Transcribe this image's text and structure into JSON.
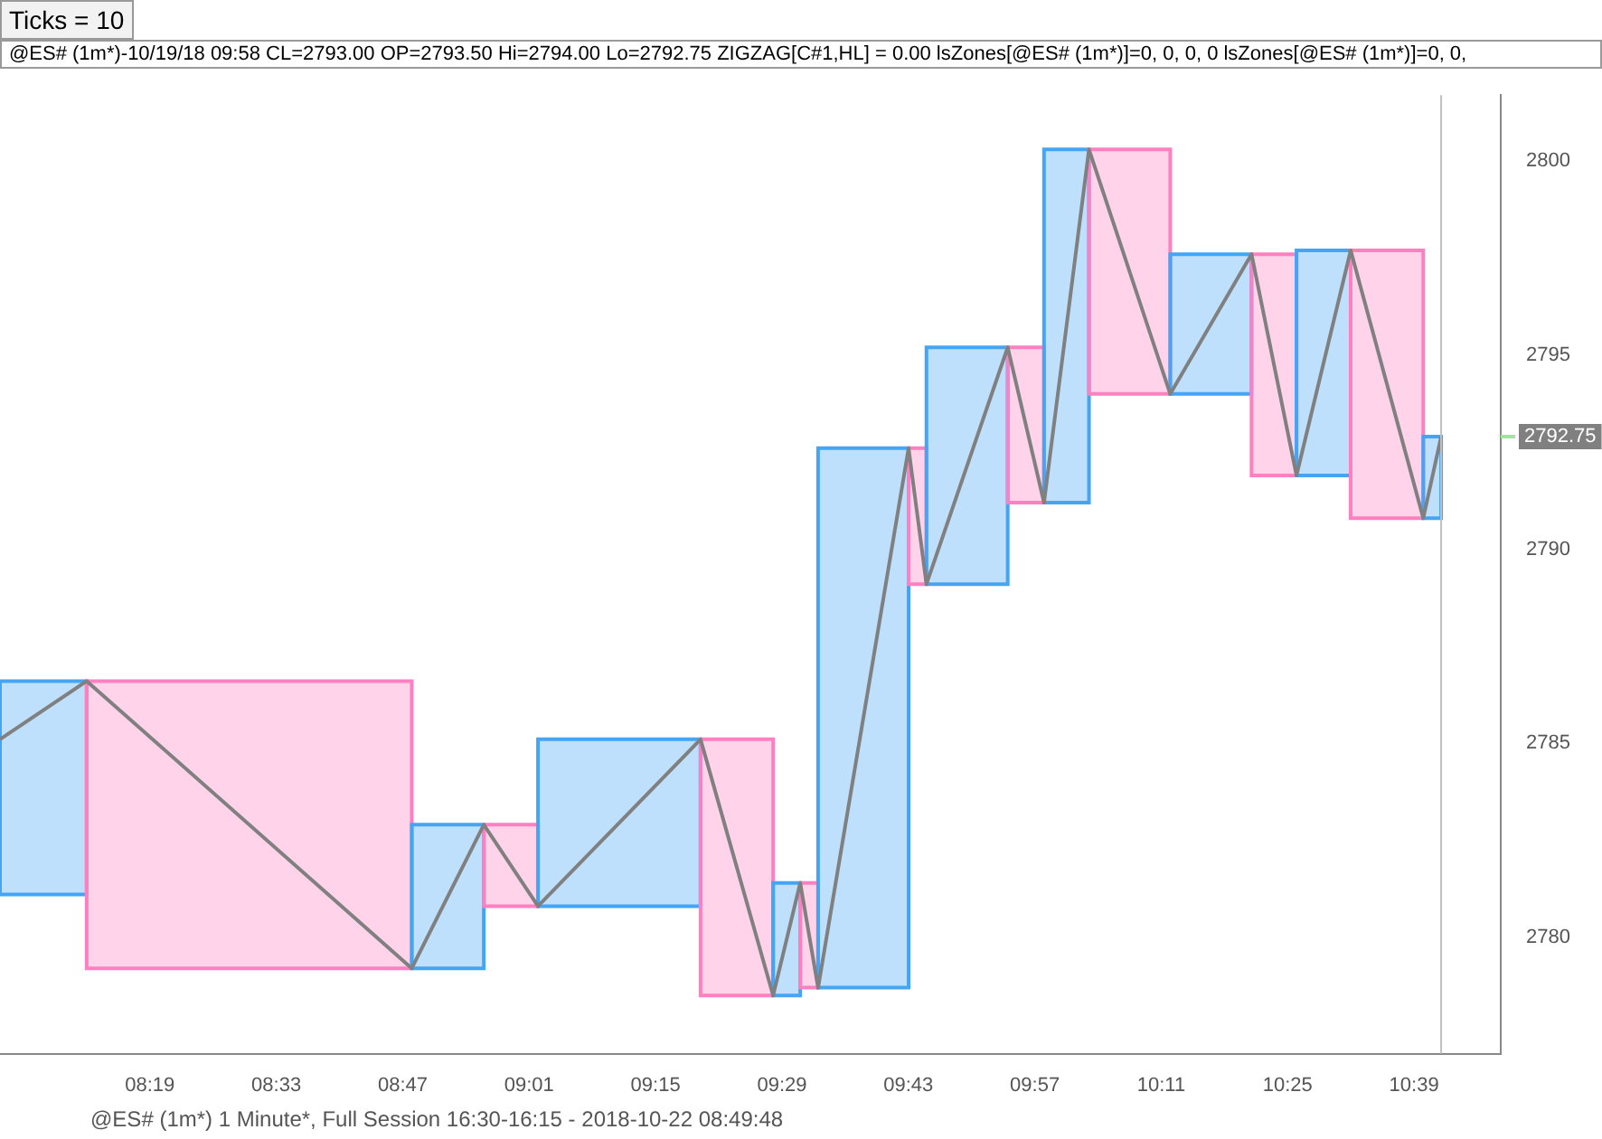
{
  "chart_data": {
    "type": "line",
    "title": "Ticks = 10",
    "subtitle": "@ES# (1m*)-10/19/18 09:58 CL=2793.00 OP=2793.50 Hi=2794.00 Lo=2792.75   ZIGZAG[C#1,HL] = 0.00   lsZones[@ES# (1m*)]=0, 0, 0, 0   lsZones[@ES# (1m*)]=0, 0,",
    "annotations": [
      "@ES# (1m*) 1 Minute*, Full Session 16:30-16:15 - 2018-10-22 08:49:48",
      "2792.75"
    ],
    "xlim": [
      8.04,
      10.81
    ],
    "xticks": [
      {
        "value": 8.3167,
        "label": "08:19"
      },
      {
        "value": 8.55,
        "label": "08:33"
      },
      {
        "value": 8.7833,
        "label": "08:47"
      },
      {
        "value": 9.0167,
        "label": "09:01"
      },
      {
        "value": 9.25,
        "label": "09:15"
      },
      {
        "value": 9.4833,
        "label": "09:29"
      },
      {
        "value": 9.7167,
        "label": "09:43"
      },
      {
        "value": 9.95,
        "label": "09:57"
      },
      {
        "value": 10.1833,
        "label": "10:11"
      },
      {
        "value": 10.4167,
        "label": "10:25"
      },
      {
        "value": 10.65,
        "label": "10:39"
      }
    ],
    "ylim": [
      2777,
      2801.7
    ],
    "yticks": [
      2780,
      2785,
      2790,
      2795,
      2800
    ],
    "grid": false,
    "legend": false,
    "marker": "none",
    "line_style": "solid",
    "series": [
      {
        "type": "bar",
        "x": [
          8.12,
          8.5,
          8.8665,
          8.983,
          9.183,
          9.4,
          9.492,
          9.5335,
          9.6335,
          9.7335,
          9.825,
          9.9335,
          10.0085,
          10.125,
          10.275,
          10.3915,
          10.483,
          10.6,
          10.6835
        ],
        "base": [
          2781.1,
          2779.2,
          2779.2,
          2780.8,
          2780.8,
          2778.5,
          2778.5,
          2778.7,
          2778.7,
          2789.1,
          2789.1,
          2791.2,
          2791.2,
          2794.0,
          2794.0,
          2791.9,
          2791.9,
          2790.8,
          2790.8
        ],
        "values": [
          5.5,
          7.4,
          3.7,
          2.1,
          4.3,
          6.6,
          2.9,
          2.7,
          13.9,
          3.5,
          6.1,
          4.0,
          9.1,
          6.3,
          3.6,
          5.7,
          5.8,
          6.9,
          2.1
        ],
        "colors": [
          "#44a5f5",
          "#ff80c0",
          "#44a5f5",
          "#ff80c0",
          "#44a5f5",
          "#ff80c0",
          "#44a5f5",
          "#ff80c0",
          "#44a5f5",
          "#ff80c0",
          "#44a5f5",
          "#ff80c0",
          "#44a5f5",
          "#ff80c0",
          "#44a5f5",
          "#ff80c0",
          "#44a5f5",
          "#ff80c0",
          "#44a5f5"
        ]
      },
      {
        "color": "#808080",
        "x": [
          8.04,
          8.2,
          8.8,
          8.933,
          9.033,
          9.333,
          9.467,
          9.517,
          9.55,
          9.717,
          9.75,
          9.9,
          9.967,
          10.05,
          10.2,
          10.35,
          10.433,
          10.533,
          10.667,
          10.7
        ],
        "values": [
          2785.1,
          2786.6,
          2779.2,
          2782.9,
          2780.8,
          2785.1,
          2778.5,
          2781.4,
          2778.7,
          2792.6,
          2789.1,
          2795.2,
          2791.2,
          2800.3,
          2794.0,
          2797.6,
          2791.9,
          2797.7,
          2790.8,
          2792.9
        ]
      }
    ],
    "ref_lines": [
      {
        "axis": "x",
        "value": 10.7,
        "color": "#c0c0c0"
      }
    ]
  }
}
